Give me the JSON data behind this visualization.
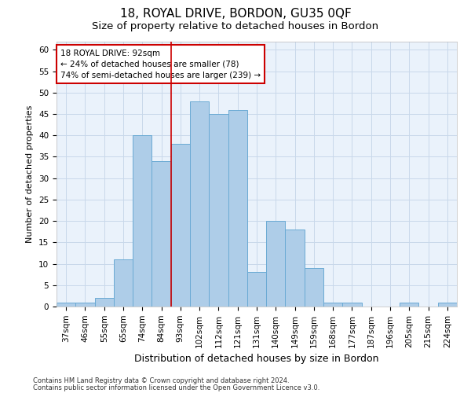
{
  "title1": "18, ROYAL DRIVE, BORDON, GU35 0QF",
  "title2": "Size of property relative to detached houses in Bordon",
  "xlabel": "Distribution of detached houses by size in Bordon",
  "ylabel": "Number of detached properties",
  "footnote1": "Contains HM Land Registry data © Crown copyright and database right 2024.",
  "footnote2": "Contains public sector information licensed under the Open Government Licence v3.0.",
  "categories": [
    "37sqm",
    "46sqm",
    "55sqm",
    "65sqm",
    "74sqm",
    "84sqm",
    "93sqm",
    "102sqm",
    "112sqm",
    "121sqm",
    "131sqm",
    "140sqm",
    "149sqm",
    "159sqm",
    "168sqm",
    "177sqm",
    "187sqm",
    "196sqm",
    "205sqm",
    "215sqm",
    "224sqm"
  ],
  "values": [
    1,
    1,
    2,
    11,
    40,
    34,
    38,
    48,
    45,
    46,
    8,
    20,
    18,
    9,
    1,
    1,
    0,
    0,
    1,
    0,
    1
  ],
  "bar_color": "#aecde8",
  "bar_edge_color": "#6aaad4",
  "grid_color": "#c8d8ea",
  "bg_color": "#eaf2fb",
  "vline_color": "#cc0000",
  "vline_index": 6,
  "annotation_line1": "18 ROYAL DRIVE: 92sqm",
  "annotation_line2": "← 24% of detached houses are smaller (78)",
  "annotation_line3": "74% of semi-detached houses are larger (239) →",
  "annotation_box_color": "#cc0000",
  "ylim": [
    0,
    62
  ],
  "yticks": [
    0,
    5,
    10,
    15,
    20,
    25,
    30,
    35,
    40,
    45,
    50,
    55,
    60
  ],
  "title1_fontsize": 11,
  "title2_fontsize": 9.5,
  "xlabel_fontsize": 9,
  "ylabel_fontsize": 8,
  "tick_fontsize": 7.5,
  "annot_fontsize": 7.5,
  "footnote_fontsize": 6
}
